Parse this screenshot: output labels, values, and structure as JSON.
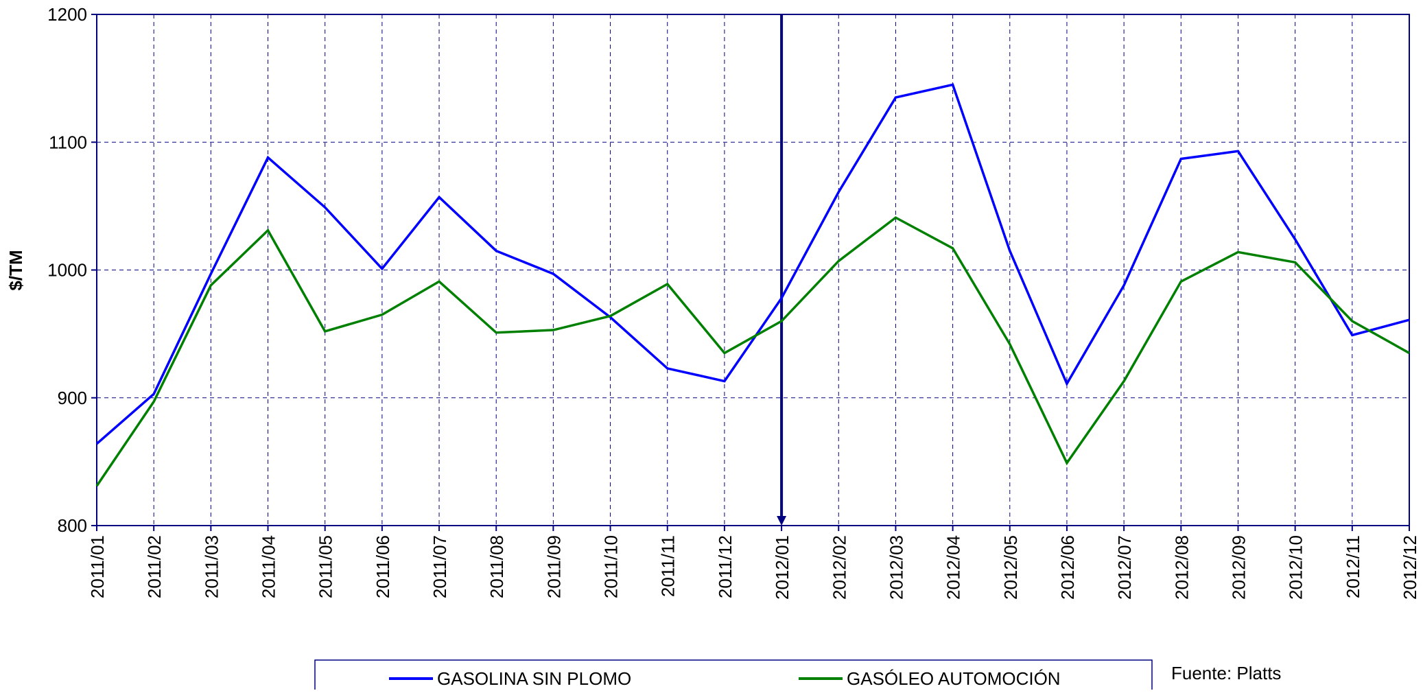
{
  "chart_data": {
    "type": "line",
    "y_label": "$/TM",
    "annotation": "Fuente: Platts",
    "categories": [
      "2011/01",
      "2011/02",
      "2011/03",
      "2011/04",
      "2011/05",
      "2011/06",
      "2011/07",
      "2011/08",
      "2011/09",
      "2011/10",
      "2011/11",
      "2011/12",
      "2012/01",
      "2012/02",
      "2012/03",
      "2012/04",
      "2012/05",
      "2012/06",
      "2012/07",
      "2012/08",
      "2012/09",
      "2012/10",
      "2012/11",
      "2012/12"
    ],
    "series": [
      {
        "name": "GASOLINA SIN PLOMO",
        "color": "#0000ff",
        "values": [
          864,
          903,
          997,
          1088,
          1049,
          1001,
          1057,
          1015,
          997,
          963,
          923,
          913,
          978,
          1061,
          1135,
          1145,
          1015,
          911,
          988,
          1087,
          1093,
          1024,
          949,
          961
        ]
      },
      {
        "name": "GASÓLEO AUTOMOCIÓN",
        "color": "#008000",
        "values": [
          831,
          897,
          988,
          1031,
          952,
          965,
          991,
          951,
          953,
          964,
          989,
          935,
          960,
          1007,
          1041,
          1017,
          942,
          849,
          913,
          991,
          1014,
          1006,
          960,
          935
        ]
      }
    ],
    "ylim": [
      800,
      1200
    ],
    "yticks": [
      800,
      900,
      1000,
      1100,
      1200
    ],
    "grid": true,
    "marker_category": "2012/01",
    "marker_color": "#000080"
  }
}
